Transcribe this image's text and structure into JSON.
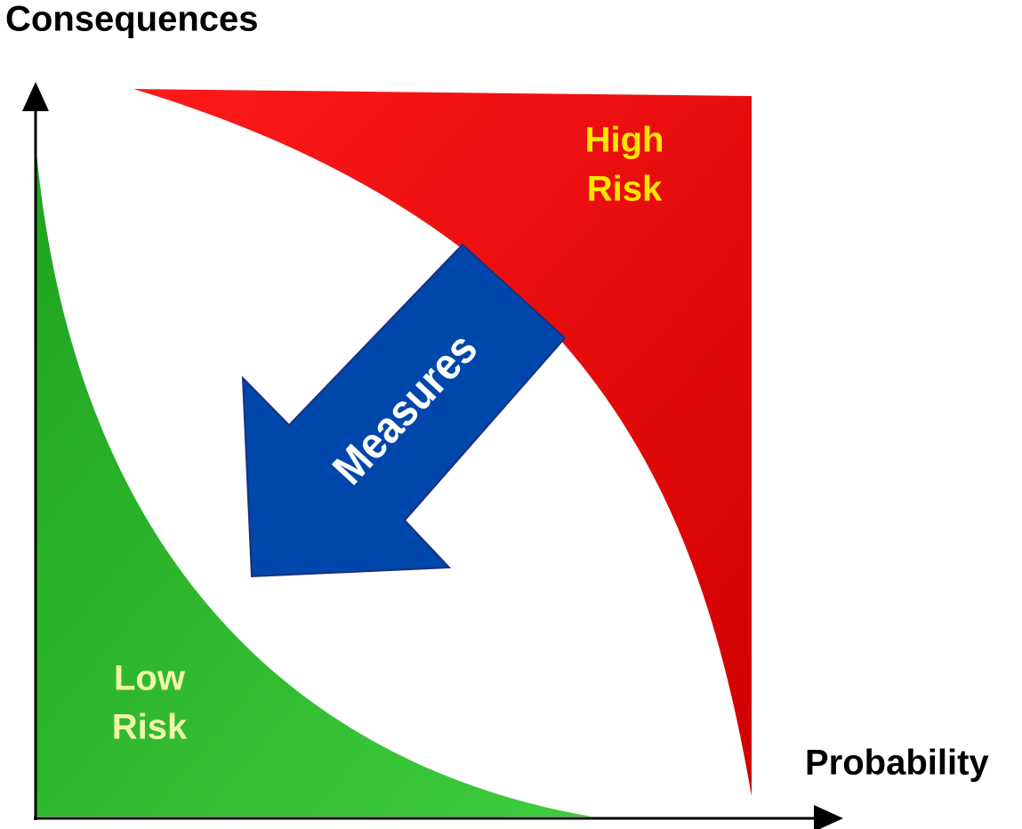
{
  "y_axis_label": "Consequences",
  "x_axis_label": "Probability",
  "regions": [
    {
      "label_lines": [
        "High",
        "Risk"
      ]
    },
    {
      "label_lines": [
        "Low",
        "Risk"
      ]
    }
  ],
  "arrow_label": "Measures"
}
